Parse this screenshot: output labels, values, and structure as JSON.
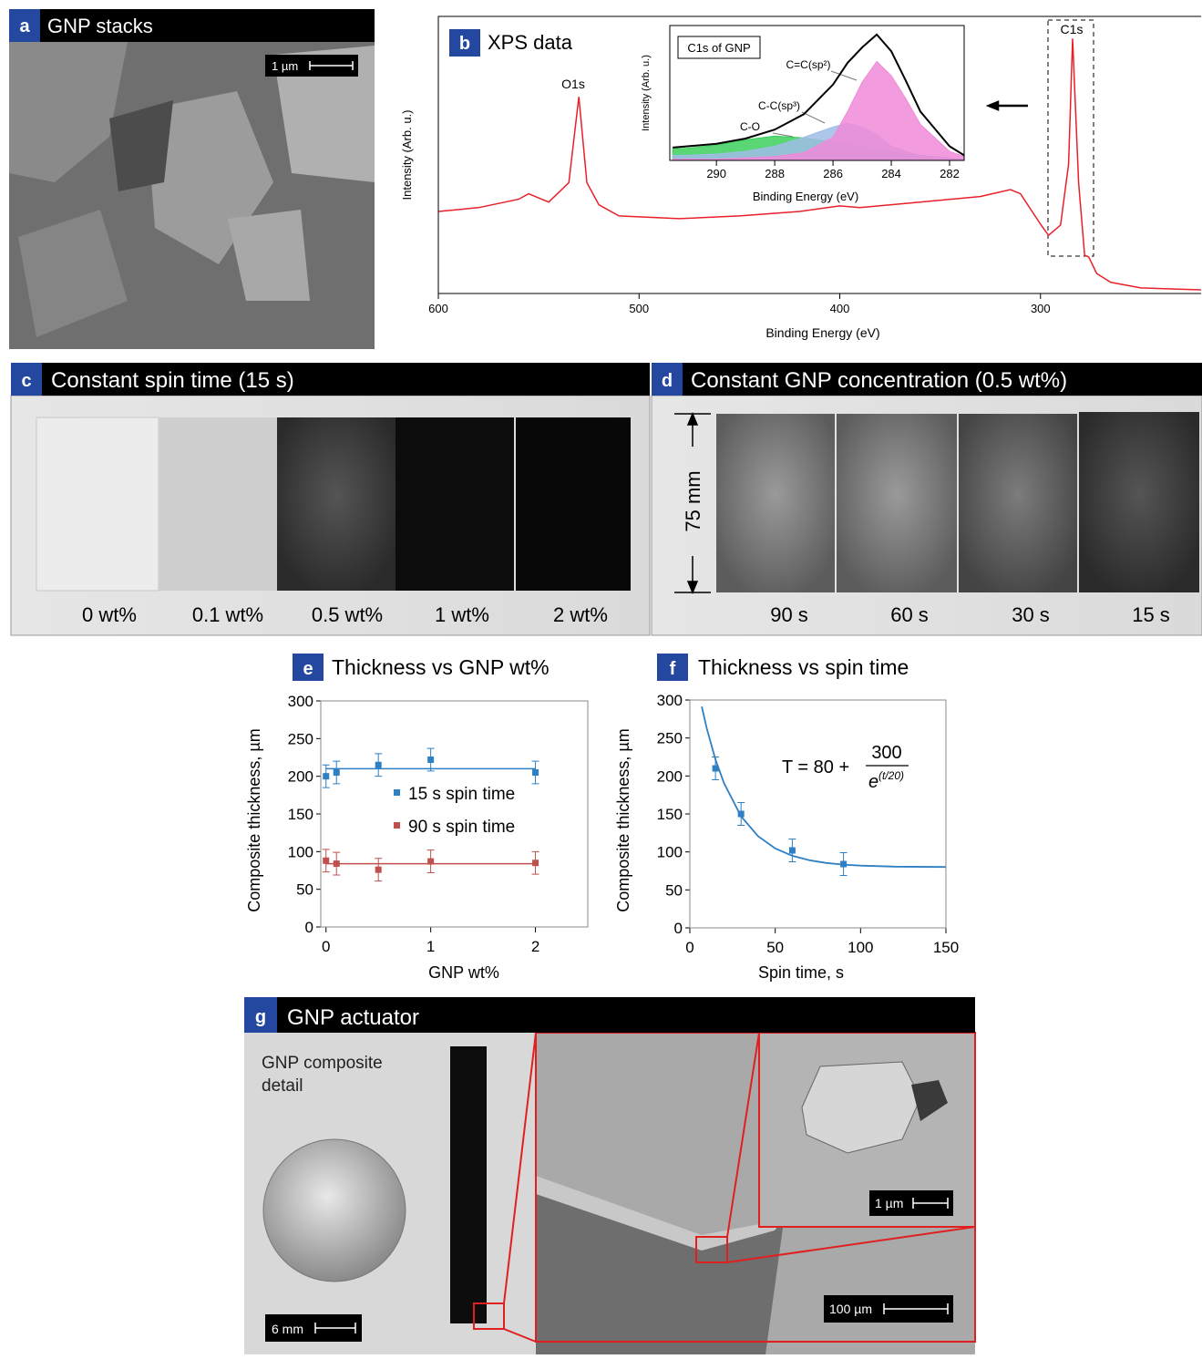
{
  "panels": {
    "a": {
      "letter": "a",
      "title": "GNP stacks",
      "scale_bar": "1 µm"
    },
    "b": {
      "letter": "b",
      "peaks": [
        "O1s",
        "C1s"
      ]
    },
    "c": {
      "letter": "c",
      "title": "Constant spin time (15 s)",
      "samples": [
        "0 wt%",
        "0.1 wt%",
        "0.5 wt%",
        "1 wt%",
        "2 wt%"
      ]
    },
    "d": {
      "letter": "d",
      "title": "Constant GNP concentration (0.5 wt%)",
      "dimension": "75 mm",
      "samples": [
        "90 s",
        "60 s",
        "30 s",
        "15 s"
      ]
    },
    "e": {
      "letter": "e"
    },
    "f": {
      "letter": "f"
    },
    "g": {
      "letter": "g",
      "title": "GNP actuator",
      "caption": [
        "GNP composite",
        "detail"
      ],
      "scale_bars": [
        "6 mm",
        "100 µm",
        "1 µm"
      ]
    }
  },
  "chart_data": [
    {
      "type": "line",
      "title": "XPS data",
      "xlabel": "Binding Energy (eV)",
      "ylabel": "Intensity (Arb. u.)",
      "x": [
        600,
        580,
        560,
        555,
        545,
        535,
        530,
        526,
        520,
        510,
        480,
        450,
        420,
        400,
        390,
        360,
        330,
        315,
        310,
        300,
        296,
        290,
        286,
        284,
        281,
        278,
        276,
        272,
        265,
        250,
        220
      ],
      "series": [
        {
          "color": "#e8202a",
          "values": [
            29.6,
            31,
            34,
            36,
            33,
            40,
            71,
            40,
            32,
            28,
            27,
            28,
            29.6,
            31.6,
            31,
            33,
            35,
            37.5,
            36,
            25,
            21,
            24.7,
            46.7,
            92,
            40,
            13.8,
            13.2,
            7.2,
            4,
            2,
            1.3
          ]
        }
      ],
      "xlim": [
        600,
        220
      ],
      "xticks": [
        600,
        500,
        400,
        300
      ],
      "ylim": [
        0,
        100
      ]
    },
    {
      "type": "line",
      "title": "C1s of GNP",
      "xlabel": "Binding Energy (eV)",
      "ylabel": "Intensity (Arb. u.)",
      "x": [
        291.5,
        291,
        290,
        289,
        288,
        287,
        286,
        285.5,
        285,
        284.5,
        284,
        283.5,
        283,
        282,
        281.5
      ],
      "series": [
        {
          "color": "#000000",
          "values": [
            10,
            11,
            13,
            17,
            24,
            36,
            59,
            76,
            88,
            98,
            85,
            62,
            38,
            11,
            4
          ]
        },
        {
          "name": "C=C(sp²)",
          "color": "#f08ad8",
          "values": [
            1,
            1,
            1,
            2,
            3,
            6,
            18,
            38,
            61,
            77,
            66,
            48,
            28,
            7,
            3
          ]
        },
        {
          "name": "C-C(sp³)",
          "color": "#9fbde8",
          "values": [
            4,
            4,
            5,
            7,
            11,
            18,
            26,
            29,
            26,
            20,
            11,
            7,
            4,
            2,
            1
          ]
        },
        {
          "name": "C-O",
          "color": "#3ecf5c",
          "values": [
            9,
            9.5,
            12,
            16,
            19,
            17.6,
            14,
            12.5,
            11,
            9,
            7,
            5,
            3,
            1.5,
            0.7
          ]
        }
      ],
      "xlim": [
        291.6,
        281.5
      ],
      "xticks": [
        290,
        288,
        286,
        284,
        282
      ],
      "ylim": [
        0,
        105
      ]
    },
    {
      "type": "scatter",
      "title": "Thickness vs GNP wt%",
      "xlabel": "GNP wt%",
      "ylabel": "Composite thickness, µm",
      "x": [
        0,
        0.1,
        0.5,
        1,
        2
      ],
      "series": [
        {
          "name": "15 s spin time",
          "color": "#2e7fc4",
          "values": [
            200,
            205,
            215,
            222,
            205
          ],
          "errors": [
            15,
            15,
            15,
            15,
            15
          ],
          "trend": {
            "x": [
              0,
              2
            ],
            "values": [
              210,
              210
            ]
          }
        },
        {
          "name": "90 s spin time",
          "color": "#c0504d",
          "values": [
            88,
            84,
            76,
            87,
            85
          ],
          "errors": [
            15,
            15,
            15,
            15,
            15
          ],
          "trend": {
            "x": [
              0,
              2
            ],
            "values": [
              84,
              84
            ]
          }
        }
      ],
      "xlim": [
        -0.05,
        2.5
      ],
      "xticks": [
        0,
        1,
        2
      ],
      "ylim": [
        0,
        300
      ],
      "yticks": [
        0,
        50,
        100,
        150,
        200,
        250,
        300
      ]
    },
    {
      "type": "scatter",
      "title": "Thickness vs spin time",
      "xlabel": "Spin time, s",
      "ylabel": "Composite thickness, µm",
      "x": [
        15,
        30,
        60,
        90
      ],
      "series": [
        {
          "color": "#2e7fc4",
          "values": [
            210,
            150,
            102,
            84
          ],
          "errors": [
            15,
            15,
            15,
            15
          ]
        }
      ],
      "fit": {
        "x": [
          7,
          10,
          15,
          20,
          30,
          40,
          50,
          60,
          70,
          80,
          90,
          100,
          120,
          150
        ],
        "values": [
          291.4,
          262,
          221.7,
          190.4,
          146.9,
          120.6,
          104.6,
          94.9,
          89.1,
          85.5,
          83.3,
          82.0,
          80.7,
          80.2
        ]
      },
      "equation": {
        "lhs": "T = 80 +",
        "numerator": "300",
        "base": "e",
        "exponent": "(t/20)"
      },
      "xlim": [
        0,
        150
      ],
      "xticks": [
        0,
        50,
        100,
        150
      ],
      "ylim": [
        0,
        300
      ],
      "yticks": [
        0,
        50,
        100,
        150,
        200,
        250,
        300
      ]
    }
  ]
}
